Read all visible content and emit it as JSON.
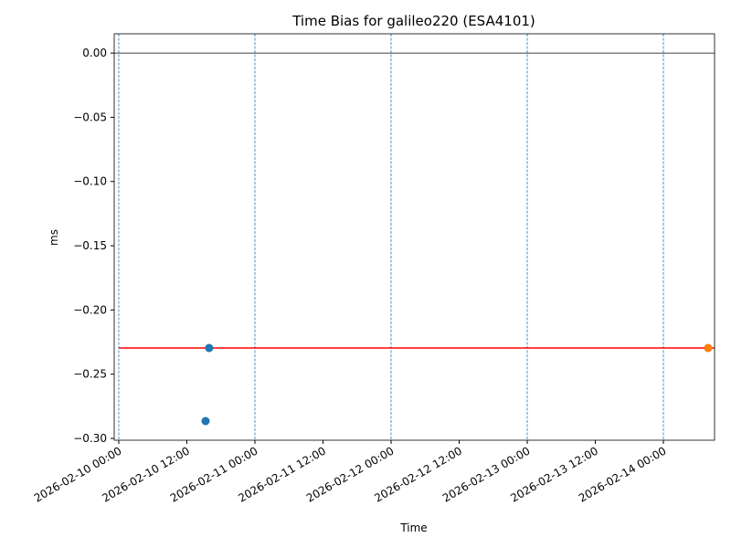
{
  "chart_data": {
    "type": "scatter",
    "title": "Time Bias for galileo220 (ESA4101)",
    "x_label": "Time",
    "y_label": "ms",
    "xlim": [
      "2026-02-09 23:12",
      "2026-02-14 09:01"
    ],
    "xticks": [
      "2026-02-10 00:00",
      "2026-02-10 12:00",
      "2026-02-11 00:00",
      "2026-02-11 12:00",
      "2026-02-12 00:00",
      "2026-02-12 12:00",
      "2026-02-13 00:00",
      "2026-02-13 12:00",
      "2026-02-14 00:00"
    ],
    "ylim": [
      -0.3014,
      0.015
    ],
    "yticks": [
      {
        "value": 0,
        "label": "0.00"
      },
      {
        "value": -0.05,
        "label": "−0.05"
      },
      {
        "value": -0.1,
        "label": "−0.10"
      },
      {
        "value": -0.15,
        "label": "−0.15"
      },
      {
        "value": -0.2,
        "label": "−0.20"
      },
      {
        "value": -0.25,
        "label": "−0.25"
      },
      {
        "value": -0.3,
        "label": "−0.30"
      }
    ],
    "hline": 0,
    "vlines": [
      "2026-02-10 00:00",
      "2026-02-11 00:00",
      "2026-02-12 00:00",
      "2026-02-13 00:00",
      "2026-02-14 00:00"
    ],
    "vline_color": "#1f77b4",
    "series": [
      {
        "type": "scatter",
        "color": "#1f77b4",
        "x": [
          "2026-02-10 15:18",
          "2026-02-10 15:56"
        ],
        "values": [
          -0.2865,
          -0.2296
        ]
      },
      {
        "type": "scatter",
        "color": "#ff7f0e",
        "x": [
          "2026-02-14 07:53"
        ],
        "values": [
          -0.2296
        ]
      },
      {
        "type": "line",
        "color": "#ff0000",
        "x": [
          "2026-02-10 00:00",
          "2026-02-14 09:01"
        ],
        "values": [
          -0.2296,
          -0.2296
        ]
      }
    ]
  }
}
